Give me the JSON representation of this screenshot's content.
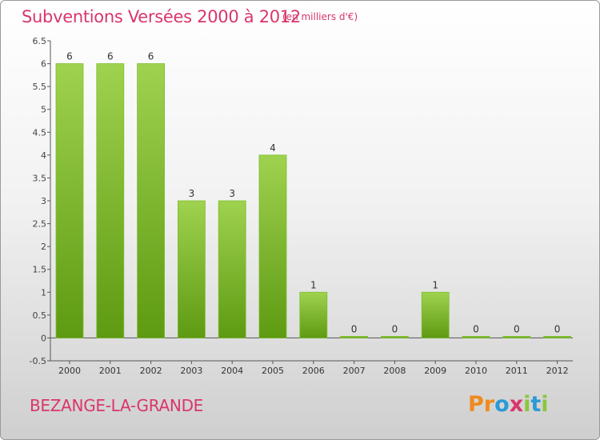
{
  "header": {
    "title": "Subventions Versées 2000 à 2012",
    "subtitle": "(en milliers d'€)"
  },
  "footer": {
    "commune": "BEZANGE-LA-GRANDE",
    "logo": {
      "letters": [
        "P",
        "r",
        "o",
        "x",
        "i",
        "t",
        "i"
      ],
      "colors": [
        "#f08a1c",
        "#f08a1c",
        "#2b9ad6",
        "#d9366a",
        "#8cc63f",
        "#2b9ad6",
        "#8cc63f"
      ]
    }
  },
  "colors": {
    "bar_top": "#9fd24f",
    "bar_bottom": "#5e9a12",
    "accent": "#d9366a"
  },
  "chart_data": {
    "type": "bar",
    "title": "Subventions Versées 2000 à 2012",
    "subtitle": "(en milliers d'€)",
    "categories": [
      "2000",
      "2001",
      "2002",
      "2003",
      "2004",
      "2005",
      "2006",
      "2007",
      "2008",
      "2009",
      "2010",
      "2011",
      "2012"
    ],
    "values": [
      6,
      6,
      6,
      3,
      3,
      4,
      1,
      0,
      0,
      1,
      0,
      0,
      0
    ],
    "ylim": [
      -0.5,
      6.5
    ],
    "yticks": [
      -0.5,
      0,
      0.5,
      1,
      1.5,
      2,
      2.5,
      3,
      3.5,
      4,
      4.5,
      5,
      5.5,
      6,
      6.5
    ],
    "ytick_labels": [
      "-0.5",
      "0",
      "0.5",
      "1",
      "1.5",
      "2",
      "2.5",
      "3",
      "3.5",
      "4",
      "4.5",
      "5",
      "5.5",
      "6",
      "6.5"
    ],
    "data_labels": [
      "6",
      "6",
      "6",
      "3",
      "3",
      "4",
      "1",
      "0",
      "0",
      "1",
      "0",
      "0",
      "0"
    ],
    "grid": false
  }
}
